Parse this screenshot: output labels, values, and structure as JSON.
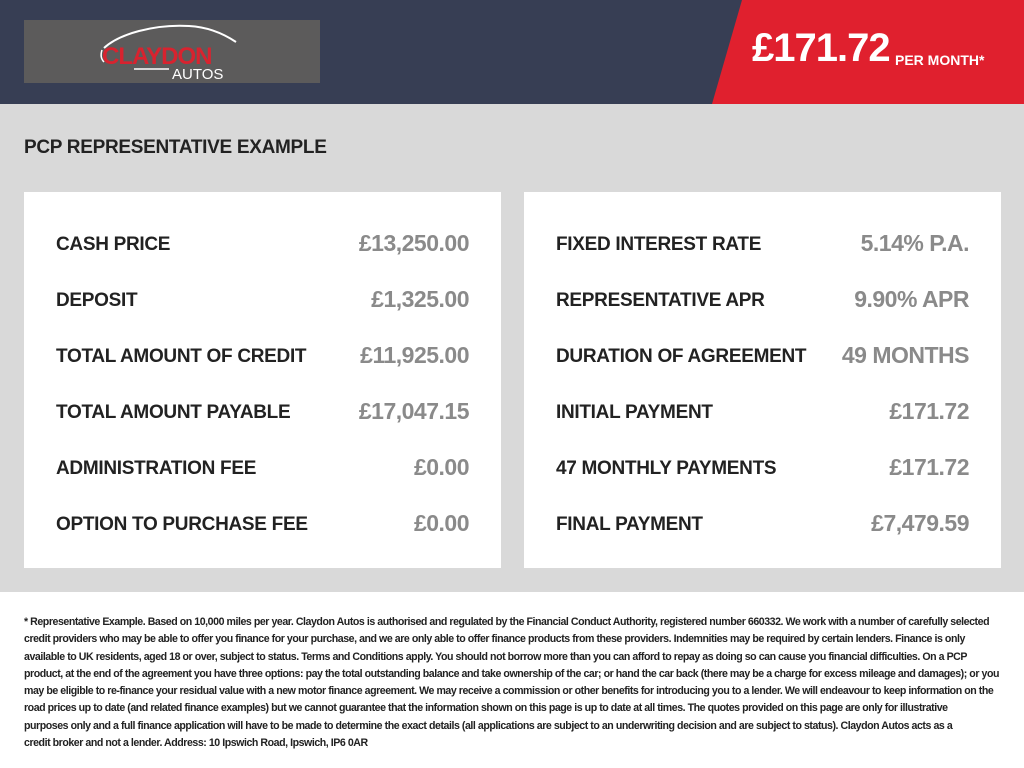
{
  "brand": {
    "logo_text": "CLAYDON",
    "logo_sub": "AUTOS"
  },
  "header": {
    "monthly_price": "£171.72",
    "per_month": "PER MONTH*"
  },
  "title": "PCP REPRESENTATIVE EXAMPLE",
  "left": [
    {
      "label": "CASH PRICE",
      "value": "£13,250.00"
    },
    {
      "label": "DEPOSIT",
      "value": "£1,325.00"
    },
    {
      "label": "TOTAL AMOUNT OF CREDIT",
      "value": "£11,925.00"
    },
    {
      "label": "TOTAL AMOUNT PAYABLE",
      "value": "£17,047.15"
    },
    {
      "label": "ADMINISTRATION FEE",
      "value": "£0.00"
    },
    {
      "label": "OPTION TO PURCHASE FEE",
      "value": "£0.00"
    }
  ],
  "right": [
    {
      "label": "FIXED INTEREST RATE",
      "value": "5.14% P.A."
    },
    {
      "label": "REPRESENTATIVE APR",
      "value": "9.90% APR"
    },
    {
      "label": "DURATION OF AGREEMENT",
      "value": "49 MONTHS"
    },
    {
      "label": "INITIAL PAYMENT",
      "value": "£171.72"
    },
    {
      "label": "47 MONTHLY PAYMENTS",
      "value": "£171.72"
    },
    {
      "label": "FINAL PAYMENT",
      "value": "£7,479.59"
    }
  ],
  "footer": {
    "lines": [
      "* Representative Example. Based on 10,000 miles per year. Claydon Autos is authorised and regulated by the Financial Conduct Authority, registered number 660332. We work with a number of carefully selected",
      "credit providers who may be able to offer you finance for your purchase, and we are only able to offer finance products from these providers. Indemnities may be required by certain lenders. Finance is only",
      "available to UK residents, aged 18 or over, subject to status. Terms and Conditions apply. You should not borrow more than you can afford to repay as doing so can cause you financial difficulties. On a PCP",
      "product, at the end of the agreement you have three options: pay the total outstanding balance and take ownership of the car; or hand the car back (there may be a charge for excess mileage and damages); or you",
      "may be eligible to re-finance your residual value with a new motor finance agreement. We may receive a commission or other benefits for introducing you to a lender. We will endeavour to keep information on the",
      "road prices up to date (and related finance examples) but we cannot guarantee that the information shown on this page is up to date at all times. The quotes provided on this page are only for illustrative",
      "purposes only and a full finance application will have to be made to determine the exact details (all applications are subject to an underwriting decision and are subject to status). Claydon Autos acts as a",
      "credit broker and not a lender. Address: 10 Ipswich Road, Ipswich, IP6 0AR"
    ]
  },
  "colors": {
    "header_bg": "#373e54",
    "accent_red": "#e0202e",
    "section_bg": "#d9d9d9"
  }
}
